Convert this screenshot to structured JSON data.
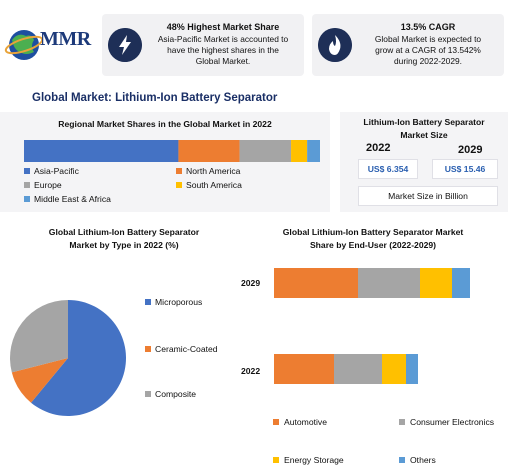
{
  "logo": {
    "text": "MMR"
  },
  "info_cards": [
    {
      "icon": "lightning-icon",
      "title": "48% Highest Market Share",
      "text_lines": [
        "Asia-Pacific Market is accounted to",
        "have the highest shares in the",
        "Global Market."
      ]
    },
    {
      "icon": "flame-icon",
      "title": "13.5% CAGR",
      "text_lines": [
        "Global Market is expected to",
        "grow at a CAGR of 13.542%",
        "during 2022-2029."
      ]
    }
  ],
  "main_title": "Global Market: Lithium-Ion Battery Separator",
  "colors": {
    "asia_pacific": "#4472c4",
    "north_america": "#ed7d31",
    "europe": "#a5a5a5",
    "south_america": "#ffc000",
    "mea": "#5b9bd5",
    "title_blue": "#1a2f66",
    "panel_bg": "#f4f4f6"
  },
  "market_size": {
    "title_lines": [
      "Lithium-Ion Battery Separator",
      "Market Size"
    ],
    "year_2022": "2022",
    "year_2029": "2029",
    "value_2022": "US$ 6.354",
    "value_2029": "US$ 15.46",
    "note": "Market Size in Billion"
  },
  "chart_data": [
    {
      "type": "bar",
      "orientation": "horizontal-stacked-100",
      "title": "Regional Market Shares in the Global Market in 2022",
      "series": [
        {
          "name": "Asia-Pacific",
          "values": [
            48
          ]
        },
        {
          "name": "North America",
          "values": [
            19
          ]
        },
        {
          "name": "Europe",
          "values": [
            16
          ]
        },
        {
          "name": "South America",
          "values": [
            5
          ]
        },
        {
          "name": "Middle East & Africa",
          "values": [
            4
          ]
        }
      ]
    },
    {
      "type": "pie",
      "title_lines": [
        "Global Lithium-Ion Battery Separator",
        "Market by Type in 2022 (%)"
      ],
      "labels": [
        "Microporous",
        "Ceramic-Coated",
        "Composite"
      ],
      "values": [
        61,
        10,
        29
      ]
    },
    {
      "type": "bar",
      "orientation": "horizontal-stacked",
      "title_lines": [
        "Global Lithium-Ion Battery Separator Market",
        "Share by End-User (2022-2029)"
      ],
      "categories": [
        "2029",
        "2022"
      ],
      "series": [
        {
          "name": "Automotive",
          "values": [
            84,
            60
          ]
        },
        {
          "name": "Consumer Electronics",
          "values": [
            62,
            48
          ]
        },
        {
          "name": "Energy Storage",
          "values": [
            32,
            24
          ]
        },
        {
          "name": "Others",
          "values": [
            18,
            12
          ]
        }
      ]
    }
  ]
}
